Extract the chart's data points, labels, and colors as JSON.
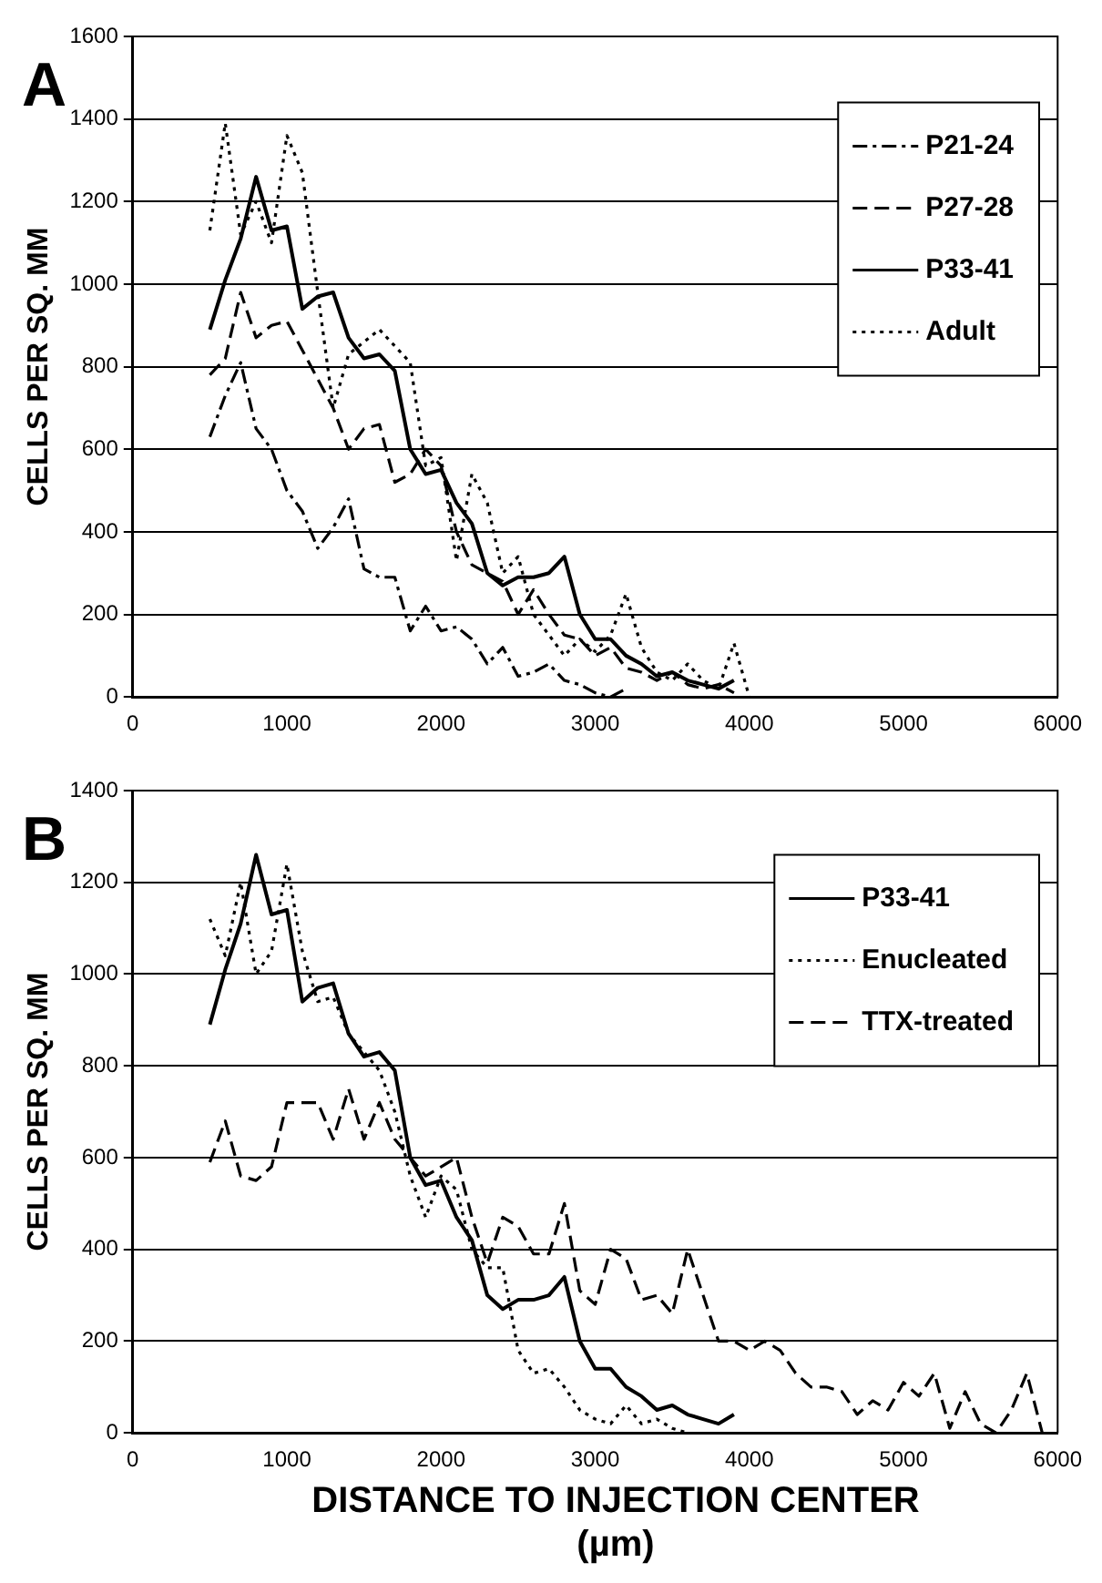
{
  "chart_data": [
    {
      "type": "line",
      "title": "A",
      "ylabel": "CELLS PER SQ. MM",
      "x": [
        500,
        600,
        700,
        800,
        900,
        1000,
        1100,
        1200,
        1300,
        1400,
        1500,
        1600,
        1700,
        1800,
        1900,
        2000,
        2100,
        2200,
        2300,
        2400,
        2500,
        2600,
        2700,
        2800,
        2900,
        3000,
        3100,
        3200,
        3300,
        3400,
        3500,
        3600,
        3700,
        3800,
        3900,
        4000
      ],
      "series": [
        {
          "name": "P21-24",
          "color": "#000000",
          "line_style": "dashdot",
          "values": [
            630,
            730,
            810,
            650,
            600,
            500,
            450,
            360,
            410,
            480,
            310,
            290,
            290,
            160,
            220,
            160,
            170,
            140,
            80,
            120,
            50,
            60,
            80,
            40,
            30,
            10,
            0,
            20,
            null,
            null,
            null,
            null,
            null,
            null,
            null,
            null
          ]
        },
        {
          "name": "P27-28",
          "color": "#000000",
          "line_style": "dashed",
          "values": [
            780,
            820,
            980,
            870,
            900,
            910,
            840,
            770,
            700,
            600,
            650,
            660,
            520,
            540,
            600,
            560,
            400,
            320,
            300,
            280,
            200,
            260,
            200,
            150,
            140,
            100,
            120,
            70,
            60,
            40,
            60,
            30,
            20,
            30,
            10,
            null
          ]
        },
        {
          "name": "P33-41",
          "color": "#000000",
          "line_style": "solid",
          "values": [
            890,
            1010,
            1110,
            1260,
            1130,
            1140,
            940,
            970,
            980,
            870,
            820,
            830,
            790,
            600,
            540,
            550,
            470,
            420,
            300,
            270,
            290,
            290,
            300,
            340,
            200,
            140,
            140,
            100,
            80,
            50,
            60,
            40,
            30,
            20,
            40,
            null
          ]
        },
        {
          "name": "Adult",
          "color": "#000000",
          "line_style": "dotted",
          "values": [
            1130,
            1390,
            1120,
            1200,
            1100,
            1360,
            1270,
            980,
            700,
            830,
            860,
            890,
            850,
            810,
            560,
            580,
            330,
            540,
            470,
            300,
            340,
            200,
            150,
            100,
            140,
            110,
            150,
            250,
            120,
            60,
            40,
            80,
            40,
            20,
            130,
            0
          ]
        }
      ],
      "xlim": [
        0,
        6000
      ],
      "xticks": [
        0,
        1000,
        2000,
        3000,
        4000,
        5000,
        6000
      ],
      "ylim": [
        0,
        1600
      ],
      "yticks": [
        0,
        200,
        400,
        600,
        800,
        1000,
        1200,
        1400,
        1600
      ],
      "grid": "y",
      "legend": "right",
      "marker": "none"
    },
    {
      "type": "line",
      "title": "B",
      "xlabel": "DISTANCE TO INJECTION CENTER (µm)",
      "ylabel": "CELLS PER SQ. MM",
      "x": [
        500,
        600,
        700,
        800,
        900,
        1000,
        1100,
        1200,
        1300,
        1400,
        1500,
        1600,
        1700,
        1800,
        1900,
        2000,
        2100,
        2200,
        2300,
        2400,
        2500,
        2600,
        2700,
        2800,
        2900,
        3000,
        3100,
        3200,
        3300,
        3400,
        3500,
        3600,
        3700,
        3800,
        3900,
        4000,
        4100,
        4200,
        4300,
        4400,
        4500,
        4600,
        4700,
        4800,
        4900,
        5000,
        5100,
        5200,
        5300,
        5400,
        5500,
        5600,
        5700,
        5800,
        5900
      ],
      "series": [
        {
          "name": "P33-41",
          "color": "#000000",
          "line_style": "solid",
          "values": [
            890,
            1010,
            1110,
            1260,
            1130,
            1140,
            940,
            970,
            980,
            870,
            820,
            830,
            790,
            600,
            540,
            550,
            470,
            420,
            300,
            270,
            290,
            290,
            300,
            340,
            200,
            140,
            140,
            100,
            80,
            50,
            60,
            40,
            30,
            20,
            40,
            null,
            null,
            null,
            null,
            null,
            null,
            null,
            null,
            null,
            null,
            null,
            null,
            null,
            null,
            null,
            null,
            null,
            null,
            null,
            null
          ]
        },
        {
          "name": "Enucleated",
          "color": "#000000",
          "line_style": "dotted",
          "values": [
            1120,
            1040,
            1200,
            1000,
            1050,
            1240,
            1050,
            940,
            950,
            870,
            830,
            790,
            700,
            560,
            470,
            560,
            530,
            400,
            360,
            360,
            180,
            130,
            140,
            100,
            50,
            30,
            20,
            60,
            20,
            30,
            10,
            0,
            null,
            null,
            null,
            null,
            null,
            null,
            null,
            null,
            null,
            null,
            null,
            null,
            null,
            null,
            null,
            null,
            null,
            null,
            null,
            null,
            null,
            null,
            null
          ]
        },
        {
          "name": "TTX-treated",
          "color": "#000000",
          "line_style": "dashed",
          "values": [
            590,
            680,
            560,
            550,
            580,
            720,
            720,
            720,
            640,
            750,
            640,
            720,
            640,
            600,
            560,
            580,
            600,
            470,
            370,
            470,
            450,
            390,
            390,
            500,
            310,
            280,
            400,
            380,
            290,
            300,
            260,
            400,
            300,
            200,
            200,
            180,
            200,
            180,
            130,
            100,
            100,
            90,
            40,
            70,
            50,
            110,
            80,
            130,
            10,
            90,
            20,
            0,
            50,
            130,
            0
          ]
        }
      ],
      "xlim": [
        0,
        6000
      ],
      "xticks": [
        0,
        1000,
        2000,
        3000,
        4000,
        5000,
        6000
      ],
      "ylim": [
        0,
        1400
      ],
      "yticks": [
        0,
        200,
        400,
        600,
        800,
        1000,
        1200,
        1400
      ],
      "grid": "y",
      "legend": "right",
      "marker": "none"
    }
  ]
}
